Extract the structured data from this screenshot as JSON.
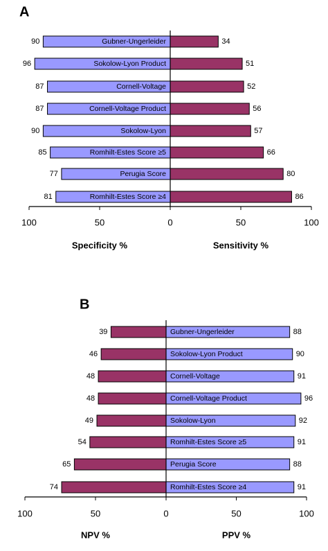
{
  "chart_data": [
    {
      "type": "butterfly",
      "panel_label": "A",
      "categories": [
        "Gubner-Ungerleider",
        "Sokolow-Lyon Product",
        "Cornell-Voltage",
        "Cornell-Voltage Product",
        "Sokolow-Lyon",
        "Romhilt-Estes Score ≥5",
        "Perugia Score",
        "Romhilt-Estes Score ≥4"
      ],
      "series": [
        {
          "name": "Specificity %",
          "color": "#9999ff",
          "side": "left",
          "values": [
            90,
            96,
            87,
            87,
            90,
            85,
            77,
            81
          ]
        },
        {
          "name": "Sensitivity %",
          "color": "#993366",
          "side": "right",
          "values": [
            34,
            51,
            52,
            56,
            57,
            66,
            80,
            86
          ]
        }
      ],
      "left_xlim": [
        100,
        0
      ],
      "left_xticks": [
        100,
        50
      ],
      "right_xlim": [
        0,
        100
      ],
      "right_xticks": [
        0,
        50,
        100
      ]
    },
    {
      "type": "butterfly",
      "panel_label": "B",
      "categories": [
        "Gubner-Ungerleider",
        "Sokolow-Lyon Product",
        "Cornell-Voltage",
        "Cornell-Voltage Product",
        "Sokolow-Lyon",
        "Romhilt-Estes Score ≥5",
        "Perugia Score",
        "Romhilt-Estes Score ≥4"
      ],
      "series": [
        {
          "name": "NPV %",
          "color": "#993366",
          "side": "left",
          "values": [
            39,
            46,
            48,
            48,
            49,
            54,
            65,
            74
          ]
        },
        {
          "name": "PPV %",
          "color": "#9999ff",
          "side": "right",
          "values": [
            88,
            90,
            91,
            96,
            92,
            91,
            88,
            91
          ]
        }
      ],
      "left_xlim": [
        100,
        0
      ],
      "left_xticks": [
        100,
        50
      ],
      "right_xlim": [
        0,
        100
      ],
      "right_xticks": [
        0,
        50,
        100
      ]
    }
  ]
}
